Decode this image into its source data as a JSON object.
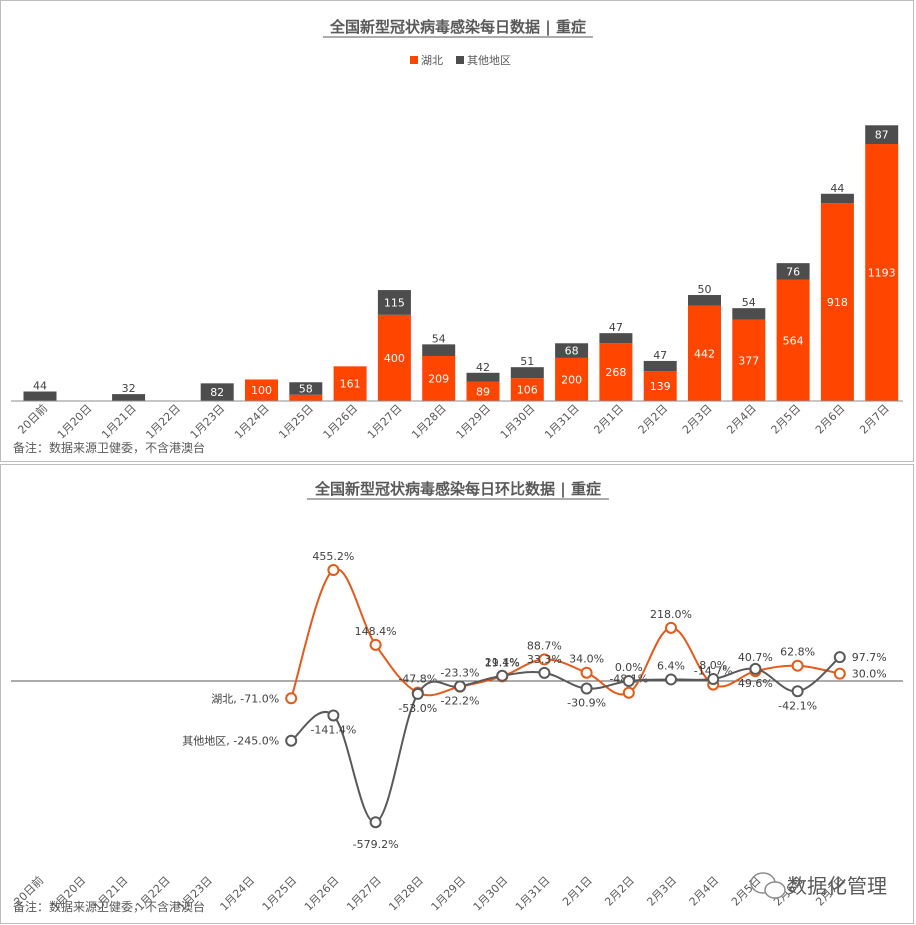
{
  "chart_data": [
    {
      "type": "bar",
      "stacked": true,
      "title": "全国新型冠状病毒感染每日数据 | 重症",
      "legend_position": "top",
      "categories": [
        "20日前",
        "1月20日",
        "1月21日",
        "1月22日",
        "1月23日",
        "1月24日",
        "1月25日",
        "1月26日",
        "1月27日",
        "1月28日",
        "1月29日",
        "1月30日",
        "1月31日",
        "2月1日",
        "2月2日",
        "2月3日",
        "2月4日",
        "2月5日",
        "2月6日",
        "2月7日"
      ],
      "series": [
        {
          "name": "湖北",
          "color": "#FF4500",
          "values": [
            null,
            null,
            null,
            null,
            0,
            100,
            29,
            161,
            400,
            209,
            89,
            106,
            200,
            268,
            139,
            442,
            377,
            564,
            918,
            1193
          ]
        },
        {
          "name": "其他地区",
          "color": "#4D4D4D",
          "values": [
            44,
            null,
            32,
            null,
            82,
            null,
            58,
            null,
            115,
            54,
            42,
            51,
            68,
            47,
            47,
            50,
            54,
            76,
            44,
            87
          ]
        }
      ],
      "note": "备注：数据来源卫健委，不含港澳台"
    },
    {
      "type": "line",
      "title": "全国新型冠状病毒感染每日环比数据 | 重症",
      "categories": [
        "20日前",
        "1月20日",
        "1月21日",
        "1月22日",
        "1月23日",
        "1月24日",
        "1月25日",
        "1月26日",
        "1月27日",
        "1月28日",
        "1月29日",
        "1月30日",
        "1月31日",
        "2月1日",
        "2月2日",
        "2月3日",
        "2月4日",
        "2月5日",
        "2月6日",
        "2月7日"
      ],
      "unit": "%",
      "series": [
        {
          "name": "湖北",
          "color": "#E35A1B",
          "values": [
            null,
            null,
            null,
            null,
            null,
            null,
            -71.0,
            455.2,
            148.4,
            -47.8,
            -23.3,
            19.1,
            88.7,
            34.0,
            -48.1,
            218.0,
            -14.7,
            40.7,
            62.8,
            30.0
          ],
          "labels": [
            "",
            "",
            "",
            "",
            "",
            "",
            "湖北, -71.0%",
            "455.2%",
            "148.4%",
            "-47.8%",
            "-23.3%",
            "19.1%",
            "88.7%",
            "34.0%",
            "-48.1%",
            "218.0%",
            "-14.7%",
            "40.7%",
            "62.8%",
            "30.0%"
          ]
        },
        {
          "name": "其他地区",
          "color": "#595959",
          "values": [
            null,
            null,
            null,
            null,
            null,
            null,
            -245.0,
            -141.4,
            -579.2,
            -53.0,
            -22.2,
            21.4,
            33.3,
            -30.9,
            0.0,
            6.4,
            8.0,
            49.6,
            -42.1,
            97.7
          ],
          "labels": [
            "",
            "",
            "",
            "",
            "",
            "",
            "其他地区, -245.0%",
            "-141.4%",
            "-579.2%",
            "-53.0%",
            "-22.2%",
            "21.4%",
            "33.3%",
            "-30.9%",
            "0.0%",
            "6.4%",
            "8.0%",
            "49.6%",
            "-42.1%",
            "97.7%"
          ]
        }
      ],
      "note": "备注：数据来源卫健委，不含港澳台",
      "watermark": "数据化管理"
    }
  ]
}
